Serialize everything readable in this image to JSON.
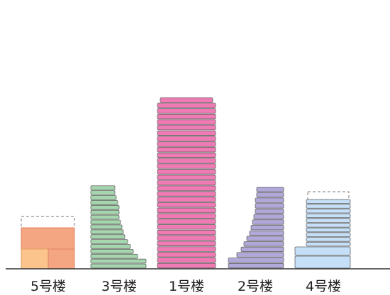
{
  "colors": {
    "building_1": "#f07ab4",
    "building_2": "#b1a8d9",
    "building_3": "#a5d6ae",
    "building_4": "#c4dff7",
    "building_5": "#f4a582",
    "building_5_base": "#fbc48c",
    "floor_line": "#ffffff",
    "outline": "#555555",
    "ground": "#333333",
    "planned_outline": "#777777"
  },
  "buildings": [
    {
      "id": "building-5",
      "label": "5号楼",
      "floors_built": 2,
      "planned_extra": 1,
      "color_key": "building_5"
    },
    {
      "id": "building-3",
      "label": "3号楼",
      "floors_built": 17,
      "planned_extra": 0,
      "color_key": "building_3"
    },
    {
      "id": "building-1",
      "label": "1号楼",
      "floors_built": 31,
      "planned_extra": 0,
      "color_key": "building_1"
    },
    {
      "id": "building-2",
      "label": "2号楼",
      "floors_built": 15,
      "planned_extra": 0,
      "color_key": "building_2"
    },
    {
      "id": "building-4",
      "label": "4号楼",
      "floors_built": 12,
      "planned_extra": 1,
      "color_key": "building_4"
    }
  ]
}
